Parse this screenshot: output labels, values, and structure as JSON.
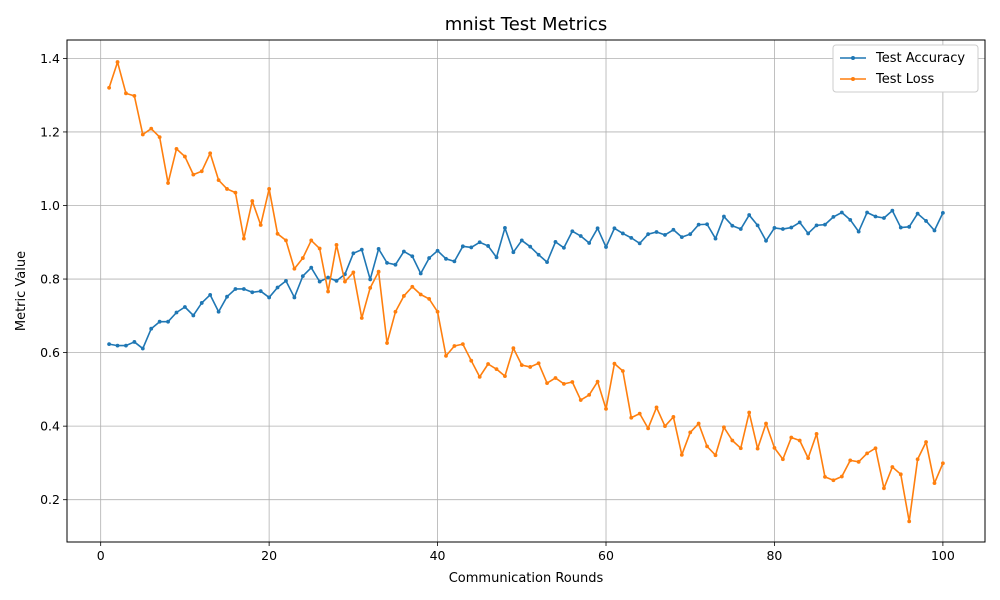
{
  "chart_data": {
    "type": "line",
    "title": "mnist Test Metrics",
    "xlabel": "Communication Rounds",
    "ylabel": "Metric Value",
    "xlim": [
      -4,
      105
    ],
    "ylim": [
      0.085,
      1.45
    ],
    "xticks": [
      0,
      20,
      40,
      60,
      80,
      100
    ],
    "yticks": [
      0.2,
      0.4,
      0.6,
      0.8,
      1.0,
      1.2,
      1.4
    ],
    "ytick_labels": [
      "0.2",
      "0.4",
      "0.6",
      "0.8",
      "1.0",
      "1.2",
      "1.4"
    ],
    "grid": true,
    "legend_position": "top-right",
    "x": [
      1,
      2,
      3,
      4,
      5,
      6,
      7,
      8,
      9,
      10,
      11,
      12,
      13,
      14,
      15,
      16,
      17,
      18,
      19,
      20,
      21,
      22,
      23,
      24,
      25,
      26,
      27,
      28,
      29,
      30,
      31,
      32,
      33,
      34,
      35,
      36,
      37,
      38,
      39,
      40,
      41,
      42,
      43,
      44,
      45,
      46,
      47,
      48,
      49,
      50,
      51,
      52,
      53,
      54,
      55,
      56,
      57,
      58,
      59,
      60,
      61,
      62,
      63,
      64,
      65,
      66,
      67,
      68,
      69,
      70,
      71,
      72,
      73,
      74,
      75,
      76,
      77,
      78,
      79,
      80,
      81,
      82,
      83,
      84,
      85,
      86,
      87,
      88,
      89,
      90,
      91,
      92,
      93,
      94,
      95,
      96,
      97,
      98,
      99,
      100
    ],
    "series": [
      {
        "name": "Test Accuracy",
        "color": "#1f77b4",
        "values": [
          0.623,
          0.619,
          0.619,
          0.629,
          0.611,
          0.665,
          0.684,
          0.684,
          0.709,
          0.724,
          0.701,
          0.735,
          0.757,
          0.711,
          0.752,
          0.773,
          0.773,
          0.764,
          0.767,
          0.75,
          0.777,
          0.795,
          0.75,
          0.808,
          0.831,
          0.793,
          0.804,
          0.795,
          0.813,
          0.87,
          0.88,
          0.799,
          0.882,
          0.844,
          0.839,
          0.875,
          0.862,
          0.815,
          0.857,
          0.877,
          0.855,
          0.848,
          0.889,
          0.886,
          0.9,
          0.89,
          0.859,
          0.939,
          0.873,
          0.905,
          0.888,
          0.866,
          0.846,
          0.901,
          0.885,
          0.93,
          0.917,
          0.898,
          0.938,
          0.887,
          0.938,
          0.924,
          0.912,
          0.897,
          0.922,
          0.928,
          0.92,
          0.934,
          0.914,
          0.922,
          0.948,
          0.949,
          0.91,
          0.97,
          0.945,
          0.936,
          0.974,
          0.946,
          0.904,
          0.939,
          0.936,
          0.94,
          0.954,
          0.924,
          0.946,
          0.948,
          0.969,
          0.981,
          0.961,
          0.929,
          0.981,
          0.97,
          0.966,
          0.986,
          0.94,
          0.942,
          0.978,
          0.958,
          0.932,
          0.98
        ]
      },
      {
        "name": "Test Loss",
        "color": "#ff7f0e",
        "values": [
          1.32,
          1.39,
          1.305,
          1.298,
          1.193,
          1.209,
          1.186,
          1.061,
          1.154,
          1.133,
          1.084,
          1.093,
          1.142,
          1.069,
          1.045,
          1.035,
          0.91,
          1.012,
          0.947,
          1.045,
          0.923,
          0.905,
          0.828,
          0.857,
          0.905,
          0.883,
          0.766,
          0.893,
          0.793,
          0.818,
          0.694,
          0.776,
          0.82,
          0.626,
          0.711,
          0.754,
          0.779,
          0.758,
          0.746,
          0.711,
          0.591,
          0.618,
          0.623,
          0.578,
          0.534,
          0.569,
          0.555,
          0.536,
          0.612,
          0.566,
          0.561,
          0.571,
          0.517,
          0.531,
          0.515,
          0.52,
          0.471,
          0.485,
          0.521,
          0.447,
          0.57,
          0.55,
          0.423,
          0.434,
          0.394,
          0.451,
          0.4,
          0.425,
          0.322,
          0.383,
          0.407,
          0.345,
          0.321,
          0.397,
          0.361,
          0.34,
          0.437,
          0.339,
          0.407,
          0.341,
          0.31,
          0.369,
          0.361,
          0.313,
          0.379,
          0.262,
          0.253,
          0.263,
          0.307,
          0.303,
          0.326,
          0.34,
          0.231,
          0.289,
          0.269,
          0.141,
          0.31,
          0.357,
          0.245,
          0.299
        ]
      }
    ]
  }
}
